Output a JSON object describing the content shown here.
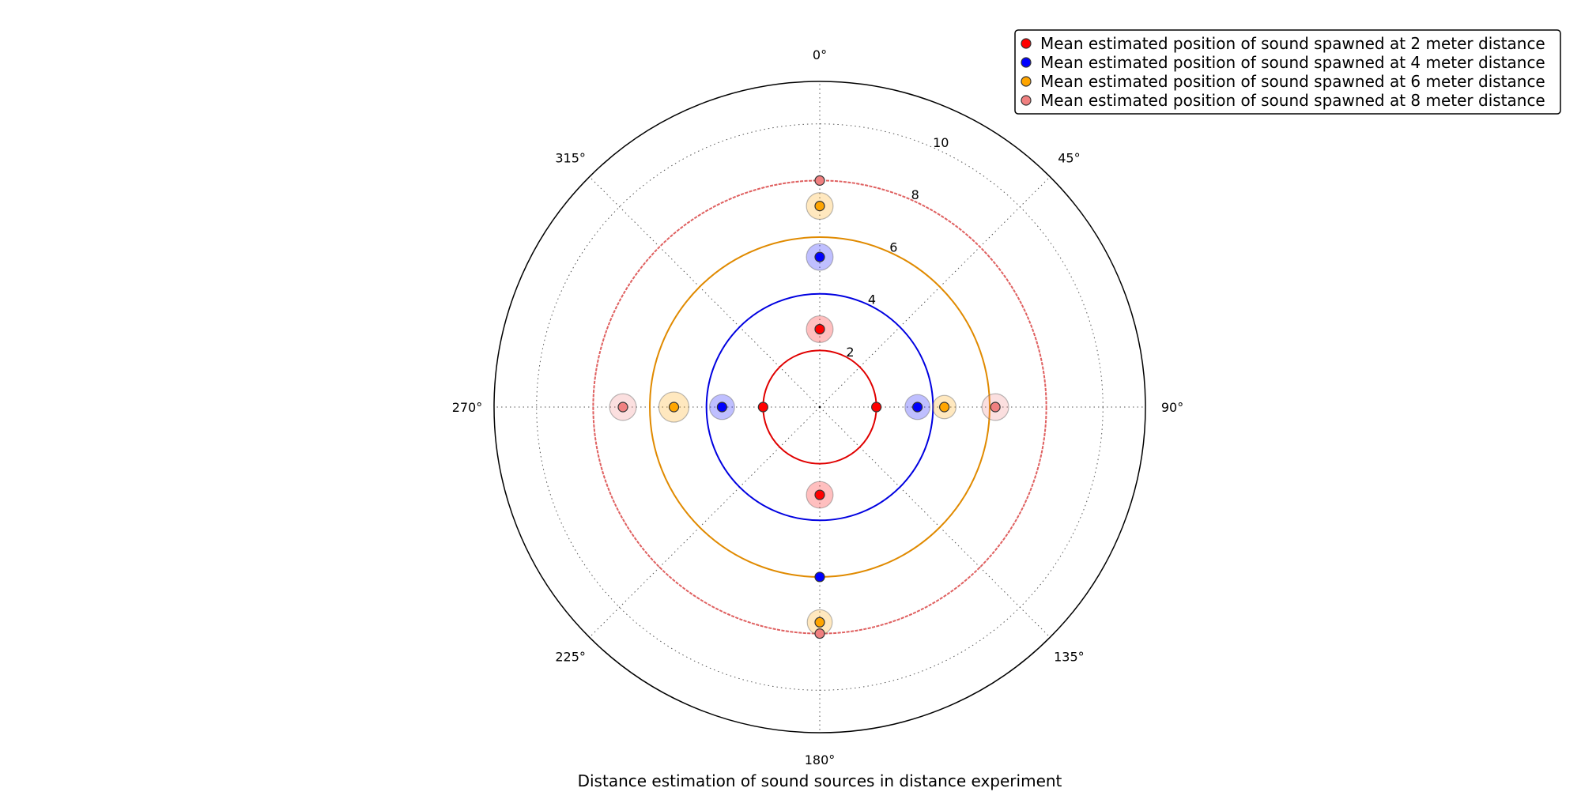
{
  "chart_data": {
    "type": "scatter",
    "subtype": "polar",
    "title": "",
    "xlabel": "Distance estimation of sound sources in distance experiment",
    "theta_ticks": [
      "0°",
      "45°",
      "90°",
      "135°",
      "180°",
      "225°",
      "270°",
      "315°"
    ],
    "r_ticks": [
      "2",
      "4",
      "6",
      "8",
      "10"
    ],
    "r_tick_values": [
      2,
      4,
      6,
      8,
      10
    ],
    "rlim": [
      0,
      11.5
    ],
    "grid": true,
    "legend_position": "top-right",
    "reference_circles": [
      {
        "radius": 2,
        "color": "#e00000",
        "style": "solid"
      },
      {
        "radius": 4,
        "color": "#0000e0",
        "style": "solid"
      },
      {
        "radius": 6,
        "color": "#e08a00",
        "style": "solid"
      },
      {
        "radius": 8,
        "color": "#e06060",
        "style": "dashed"
      }
    ],
    "series": [
      {
        "name": "Mean estimated position of sound spawned at 2 meter distance",
        "color": "#ff0000",
        "halo_color": "#ff0000",
        "points": [
          {
            "theta": 0,
            "r": 2.75,
            "spread": 0.6
          },
          {
            "theta": 90,
            "r": 2.0,
            "spread": 0
          },
          {
            "theta": 180,
            "r": 3.1,
            "spread": 0.6
          },
          {
            "theta": 270,
            "r": 2.0,
            "spread": 0
          }
        ]
      },
      {
        "name": "Mean estimated position of sound spawned at 4 meter distance",
        "color": "#0000ff",
        "halo_color": "#0000ff",
        "points": [
          {
            "theta": 0,
            "r": 5.3,
            "spread": 0.6
          },
          {
            "theta": 90,
            "r": 3.45,
            "spread": 0.55
          },
          {
            "theta": 180,
            "r": 6.0,
            "spread": 0
          },
          {
            "theta": 270,
            "r": 3.45,
            "spread": 0.55
          }
        ]
      },
      {
        "name": "Mean estimated position of sound spawned at 6 meter distance",
        "color": "#ffa500",
        "halo_color": "#ffa500",
        "points": [
          {
            "theta": 0,
            "r": 7.1,
            "spread": 0.6
          },
          {
            "theta": 90,
            "r": 4.4,
            "spread": 0.5
          },
          {
            "theta": 180,
            "r": 7.6,
            "spread": 0.55
          },
          {
            "theta": 270,
            "r": 5.15,
            "spread": 0.7
          }
        ]
      },
      {
        "name": "Mean estimated position of sound spawned at 8 meter distance",
        "color": "#f08080",
        "halo_color": "#f08080",
        "points": [
          {
            "theta": 0,
            "r": 8.0,
            "spread": 0
          },
          {
            "theta": 90,
            "r": 6.2,
            "spread": 0.6
          },
          {
            "theta": 180,
            "r": 8.0,
            "spread": 0
          },
          {
            "theta": 270,
            "r": 6.95,
            "spread": 0.6
          }
        ]
      }
    ]
  }
}
